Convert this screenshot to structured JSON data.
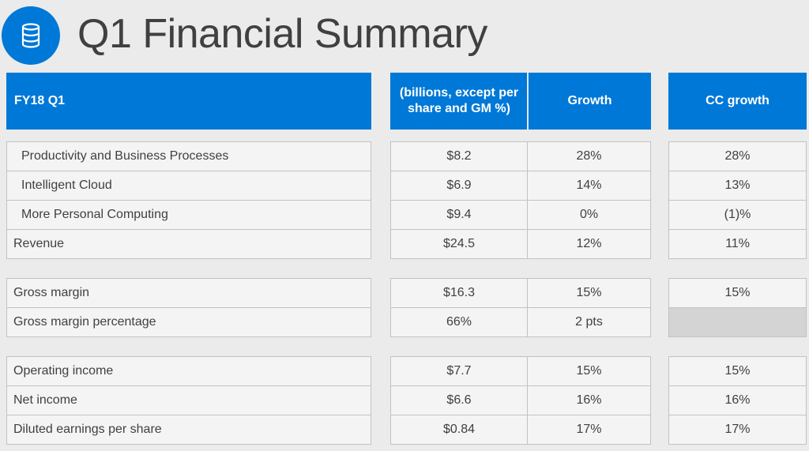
{
  "slide": {
    "title": "Q1 Financial Summary",
    "icon": "database-icon",
    "accent_color": "#0078d7"
  },
  "table": {
    "headers": {
      "label": "FY18 Q1",
      "amount": "(billions, except per share and GM %)",
      "growth": "Growth",
      "cc_growth": "CC growth"
    },
    "rows": [
      {
        "label": "Productivity and Business Processes",
        "amount": "$8.2",
        "growth": "28%",
        "cc_growth": "28%"
      },
      {
        "label": "Intelligent Cloud",
        "amount": "$6.9",
        "growth": "14%",
        "cc_growth": "13%"
      },
      {
        "label": "More Personal Computing",
        "amount": "$9.4",
        "growth": "0%",
        "cc_growth": "(1)%"
      },
      {
        "label": "Revenue",
        "amount": "$24.5",
        "growth": "12%",
        "cc_growth": "11%"
      },
      {
        "label": "Gross margin",
        "amount": "$16.3",
        "growth": "15%",
        "cc_growth": "15%"
      },
      {
        "label": "Gross margin percentage",
        "amount": "66%",
        "growth": "2 pts",
        "cc_growth": ""
      },
      {
        "label": "Operating income",
        "amount": "$7.7",
        "growth": "15%",
        "cc_growth": "15%"
      },
      {
        "label": "Net income",
        "amount": "$6.6",
        "growth": "16%",
        "cc_growth": "16%"
      },
      {
        "label": "Diluted earnings per share",
        "amount": "$0.84",
        "growth": "17%",
        "cc_growth": "17%"
      }
    ]
  }
}
